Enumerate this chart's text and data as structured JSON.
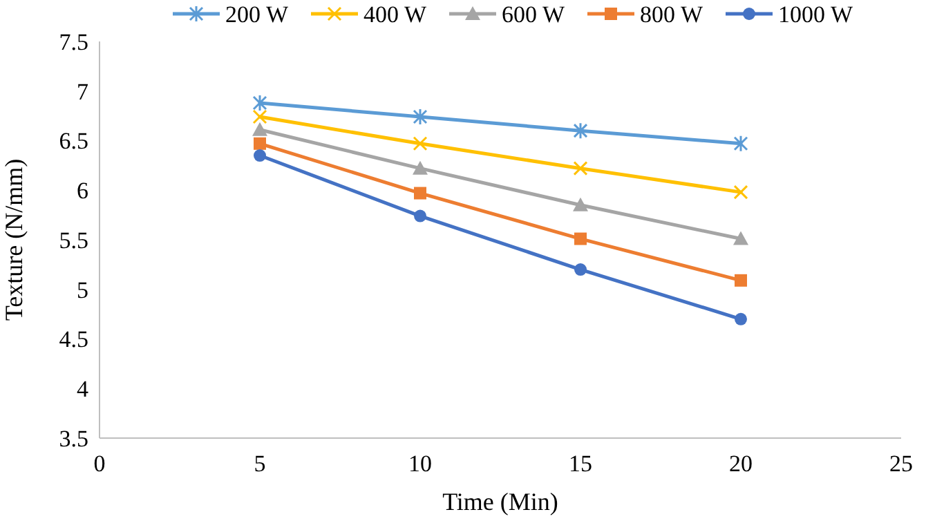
{
  "chart_data": {
    "type": "line",
    "xlabel": "Time (Min)",
    "ylabel": "Texture (N/mm)",
    "x": [
      5,
      10,
      15,
      20
    ],
    "xlim": [
      0,
      25
    ],
    "xticks": [
      0,
      5,
      10,
      15,
      20,
      25
    ],
    "ylim": [
      3.5,
      7.5
    ],
    "yticks": [
      3.5,
      4,
      4.5,
      5,
      5.5,
      6,
      6.5,
      7,
      7.5
    ],
    "grid": false,
    "legend": "top",
    "series": [
      {
        "name": "200 W",
        "color": "#5b9bd5",
        "marker": "cross",
        "values": [
          6.88,
          6.74,
          6.6,
          6.47
        ]
      },
      {
        "name": "400 W",
        "color": "#ffc000",
        "marker": "x",
        "values": [
          6.74,
          6.47,
          6.22,
          5.98
        ]
      },
      {
        "name": "600 W",
        "color": "#a5a5a5",
        "marker": "triangle",
        "values": [
          6.61,
          6.22,
          5.85,
          5.51
        ]
      },
      {
        "name": "800 W",
        "color": "#ed7d31",
        "marker": "square",
        "values": [
          6.47,
          5.97,
          5.51,
          5.09
        ]
      },
      {
        "name": "1000 W",
        "color": "#4472c4",
        "marker": "circle",
        "values": [
          6.35,
          5.74,
          5.2,
          4.7
        ]
      }
    ]
  }
}
